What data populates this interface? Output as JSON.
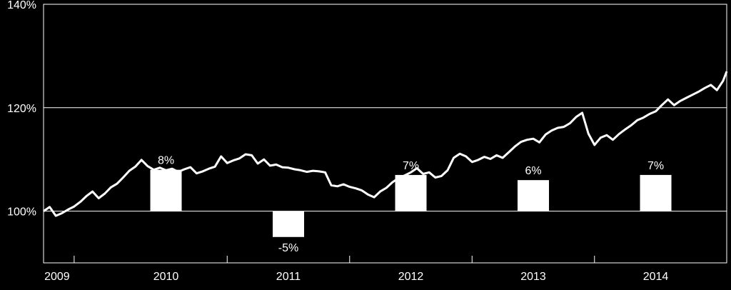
{
  "chart_data": {
    "type": "bar+line",
    "ylim": [
      90,
      140
    ],
    "y_tick_labels": [
      "100%",
      "120%",
      "140%"
    ],
    "y_ticks": [
      100,
      120,
      140
    ],
    "gridlines_at": [
      100,
      120
    ],
    "grid": "horizontal",
    "x_tick_labels": [
      "2009",
      "2010",
      "2011",
      "2012",
      "2013",
      "2014"
    ],
    "xlim": [
      2009.0,
      2014.58
    ],
    "annual_returns": {
      "categories": [
        "2010",
        "2011",
        "2012",
        "2013",
        "2014"
      ],
      "x": [
        2010.0,
        2011.0,
        2012.0,
        2013.0,
        2014.0
      ],
      "values_pct": [
        8,
        -5,
        7,
        6,
        7
      ],
      "labels": [
        "8%",
        "-5%",
        "7%",
        "6%",
        "7%"
      ]
    },
    "cumulative_series": {
      "x": [
        2009.0,
        2009.05,
        2009.1,
        2009.15,
        2009.2,
        2009.25,
        2009.3,
        2009.35,
        2009.4,
        2009.45,
        2009.5,
        2009.55,
        2009.6,
        2009.65,
        2009.7,
        2009.75,
        2009.8,
        2009.85,
        2009.9,
        2009.95,
        2010.0,
        2010.05,
        2010.1,
        2010.15,
        2010.2,
        2010.25,
        2010.3,
        2010.35,
        2010.4,
        2010.45,
        2010.5,
        2010.55,
        2010.6,
        2010.65,
        2010.7,
        2010.75,
        2010.8,
        2010.85,
        2010.9,
        2010.95,
        2011.0,
        2011.05,
        2011.1,
        2011.15,
        2011.2,
        2011.25,
        2011.3,
        2011.35,
        2011.4,
        2011.45,
        2011.5,
        2011.55,
        2011.6,
        2011.65,
        2011.7,
        2011.75,
        2011.8,
        2011.85,
        2011.9,
        2011.95,
        2012.0,
        2012.05,
        2012.1,
        2012.15,
        2012.2,
        2012.25,
        2012.3,
        2012.35,
        2012.4,
        2012.45,
        2012.5,
        2012.55,
        2012.6,
        2012.65,
        2012.7,
        2012.75,
        2012.8,
        2012.85,
        2012.9,
        2012.95,
        2013.0,
        2013.05,
        2013.1,
        2013.15,
        2013.2,
        2013.25,
        2013.3,
        2013.35,
        2013.4,
        2013.45,
        2013.5,
        2013.55,
        2013.6,
        2013.65,
        2013.7,
        2013.75,
        2013.8,
        2013.85,
        2013.9,
        2013.95,
        2014.0,
        2014.05,
        2014.1,
        2014.15,
        2014.2,
        2014.25,
        2014.3,
        2014.35,
        2014.4,
        2014.45,
        2014.5,
        2014.55,
        2014.58
      ],
      "y": [
        100.0,
        100.8,
        99.1,
        99.6,
        100.3,
        100.9,
        101.8,
        102.9,
        103.8,
        102.5,
        103.4,
        104.6,
        105.3,
        106.5,
        107.8,
        108.6,
        109.9,
        108.7,
        108.0,
        108.4,
        107.9,
        108.2,
        107.6,
        108.1,
        108.5,
        107.3,
        107.7,
        108.2,
        108.6,
        110.6,
        109.3,
        109.8,
        110.2,
        111.0,
        110.8,
        109.2,
        110.0,
        108.8,
        109.0,
        108.5,
        108.4,
        108.1,
        107.9,
        107.6,
        107.8,
        107.7,
        107.5,
        105.0,
        104.8,
        105.2,
        104.7,
        104.4,
        104.0,
        103.2,
        102.7,
        103.8,
        104.5,
        105.6,
        106.4,
        106.9,
        107.5,
        108.3,
        107.2,
        107.5,
        106.5,
        106.8,
        107.9,
        110.3,
        111.1,
        110.6,
        109.5,
        109.9,
        110.5,
        110.1,
        110.8,
        110.3,
        111.4,
        112.5,
        113.4,
        113.8,
        114.0,
        113.3,
        114.8,
        115.6,
        116.1,
        116.3,
        117.0,
        118.2,
        119.0,
        115.0,
        112.8,
        114.2,
        114.7,
        113.8,
        114.9,
        115.8,
        116.6,
        117.6,
        118.1,
        118.8,
        119.3,
        120.5,
        121.6,
        120.5,
        121.3,
        121.9,
        122.5,
        123.1,
        123.8,
        124.4,
        123.4,
        125.2,
        127.0
      ]
    }
  }
}
